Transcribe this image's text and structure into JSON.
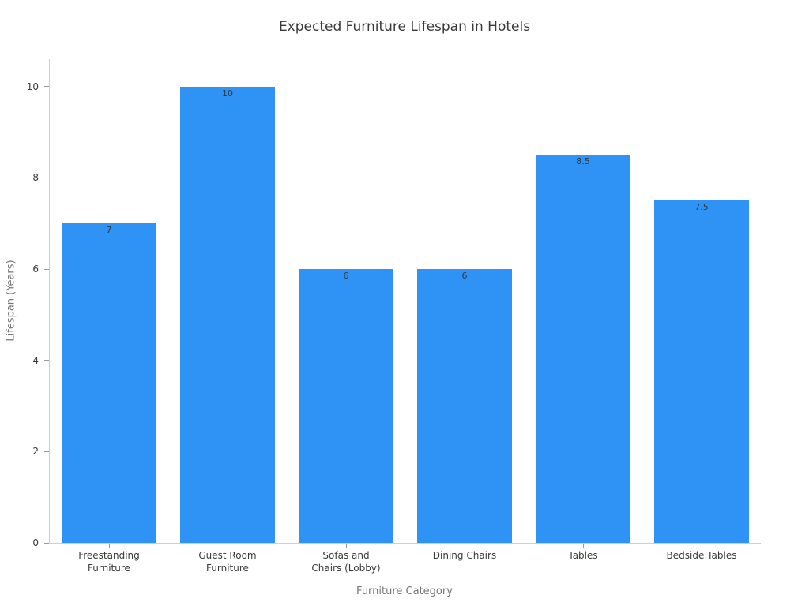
{
  "chart_data": {
    "type": "bar",
    "title": "Expected Furniture Lifespan in Hotels",
    "xlabel": "Furniture Category",
    "ylabel": "Lifespan (Years)",
    "categories": [
      "Freestanding\nFurniture",
      "Guest Room\nFurniture",
      "Sofas and\nChairs (Lobby)",
      "Dining Chairs",
      "Tables",
      "Bedside Tables"
    ],
    "values": [
      7,
      10,
      6,
      6,
      8.5,
      7.5
    ],
    "value_labels": [
      "7",
      "10",
      "6",
      "6",
      "8.5",
      "7.5"
    ],
    "yticks": [
      0,
      2,
      4,
      6,
      8,
      10
    ],
    "ylim": [
      0,
      10.6
    ],
    "bar_color": "#2F93F5",
    "background": "#ffffff",
    "grid": false,
    "legend": "none"
  }
}
